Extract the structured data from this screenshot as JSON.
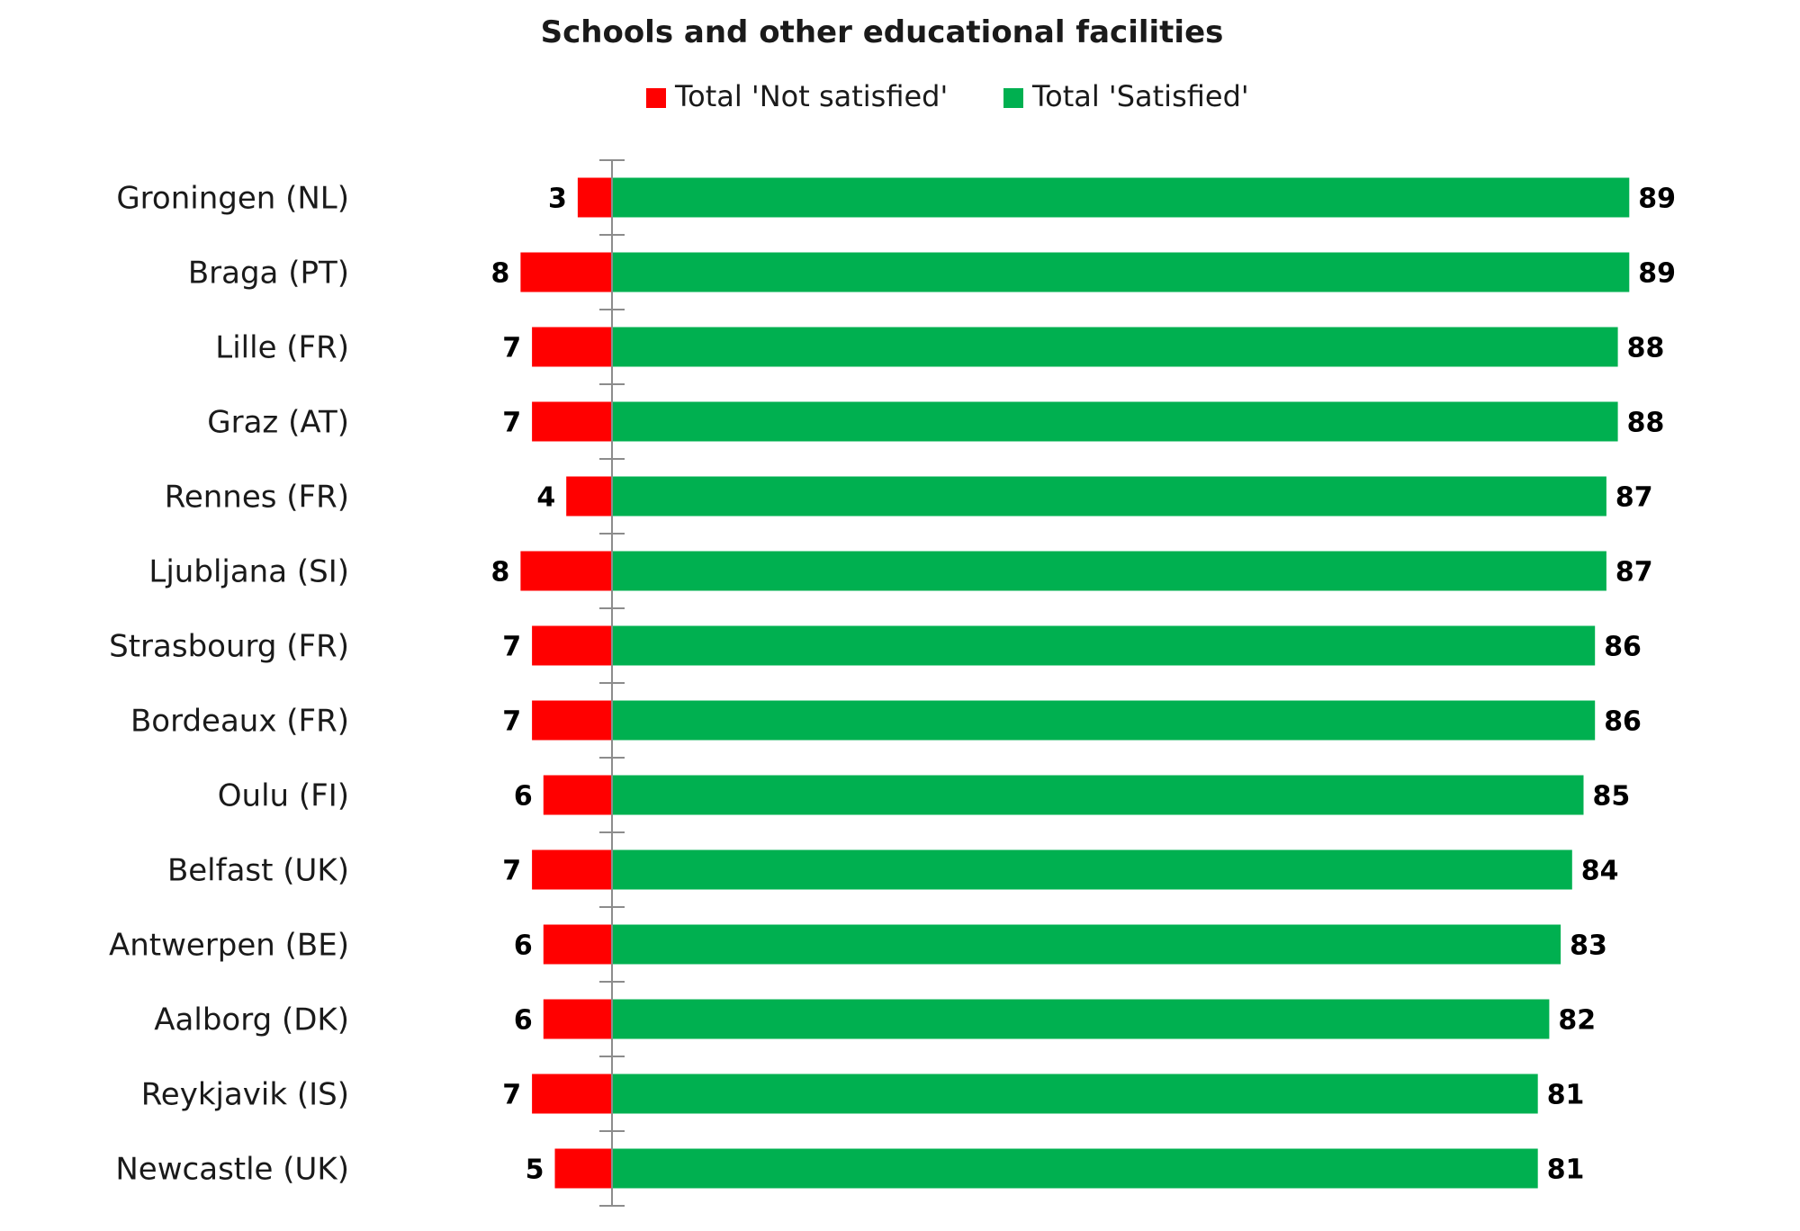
{
  "chart_data": {
    "type": "bar",
    "orientation": "horizontal",
    "stacking": "diverging",
    "title": "Schools and other educational facilities",
    "legend_position": "top",
    "grid": false,
    "categories": [
      "Groningen (NL)",
      "Braga (PT)",
      "Lille (FR)",
      "Graz (AT)",
      "Rennes (FR)",
      "Ljubljana (SI)",
      "Strasbourg (FR)",
      "Bordeaux (FR)",
      "Oulu (FI)",
      "Belfast (UK)",
      "Antwerpen (BE)",
      "Aalborg (DK)",
      "Reykjavik (IS)",
      "Newcastle (UK)"
    ],
    "series": [
      {
        "name": "Total 'Not satisfied'",
        "color": "#ff0000",
        "direction": "left",
        "values": [
          3,
          8,
          7,
          7,
          4,
          8,
          7,
          7,
          6,
          7,
          6,
          6,
          7,
          5
        ]
      },
      {
        "name": "Total 'Satisfied'",
        "color": "#00b050",
        "direction": "right",
        "values": [
          89,
          89,
          88,
          88,
          87,
          87,
          86,
          86,
          85,
          84,
          83,
          82,
          81,
          81
        ]
      }
    ]
  }
}
